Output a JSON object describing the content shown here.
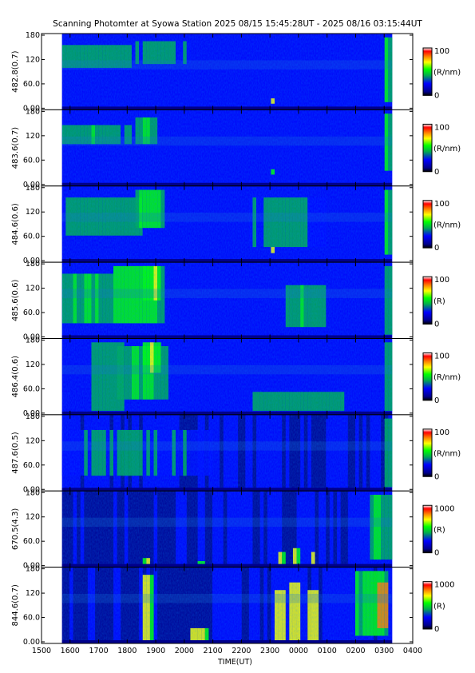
{
  "title": "Scanning Photomter at Syowa Station  2025 08/15 15:45:28UT - 2025 08/16 03:15:44UT",
  "chart_data": {
    "type": "heatmap",
    "xlabel": "TIME(UT)",
    "x_ticks": [
      "1500",
      "1600",
      "1700",
      "1800",
      "1900",
      "2000",
      "2100",
      "2200",
      "2300",
      "0000",
      "0100",
      "0200",
      "0300",
      "0400"
    ],
    "y_ticks": [
      "0.00",
      "60.0",
      "120",
      "180"
    ],
    "ylim": [
      0,
      180
    ],
    "data_start_tick_index": 0.72,
    "data_end_tick_index": 12.27,
    "colormap": [
      "#000000",
      "#00008b",
      "#0000ff",
      "#00aa50",
      "#00ff00",
      "#ffff00",
      "#ff8000",
      "#ff0000",
      "#ffffff"
    ],
    "panels": [
      {
        "label": "482.8(0.7)",
        "cbar_max": "100",
        "cbar_unit": "(R/nm)",
        "cbar_min": "0"
      },
      {
        "label": "483.6(0.7)",
        "cbar_max": "100",
        "cbar_unit": "(R/nm)",
        "cbar_min": "0"
      },
      {
        "label": "484.6(0.6)",
        "cbar_max": "100",
        "cbar_unit": "(R/nm)",
        "cbar_min": "0"
      },
      {
        "label": "485.6(0.6)",
        "cbar_max": "100",
        "cbar_unit": "(R)",
        "cbar_min": "0"
      },
      {
        "label": "486.4(0.6)",
        "cbar_max": "100",
        "cbar_unit": "(R/nm)",
        "cbar_min": "0"
      },
      {
        "label": "487.6(0.5)",
        "cbar_max": "100",
        "cbar_unit": "(R/nm)",
        "cbar_min": "0"
      },
      {
        "label": "670.5(4.3)",
        "cbar_max": "1000",
        "cbar_unit": "(R)",
        "cbar_min": "0"
      },
      {
        "label": "844.6(0.7)",
        "cbar_max": "1000",
        "cbar_unit": "(R)",
        "cbar_min": "0"
      }
    ]
  }
}
